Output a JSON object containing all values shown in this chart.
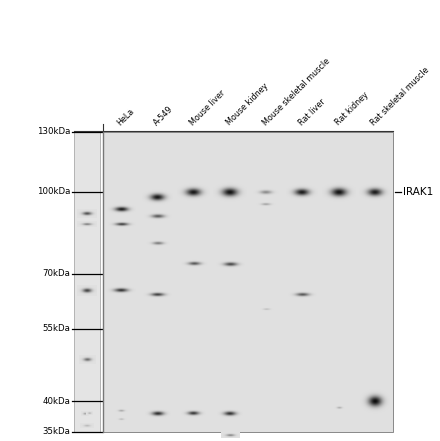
{
  "lane_labels": [
    "HeLa",
    "A-549",
    "Mouse liver",
    "Mouse kidney",
    "Mouse skeletal muscle",
    "Rat liver",
    "Rat kidney",
    "Rat skeletal muscle"
  ],
  "mw_labels": [
    "130kDa",
    "100kDa",
    "70kDa",
    "55kDa",
    "40kDa",
    "35kDa"
  ],
  "mw_positions": [
    130,
    100,
    70,
    55,
    40,
    35
  ],
  "irak1_label": "IRAK1",
  "panel_bg": "#e8e8e8",
  "ladder_bg": "#eeeeee",
  "main_panel_bg": "#e0e0e0"
}
